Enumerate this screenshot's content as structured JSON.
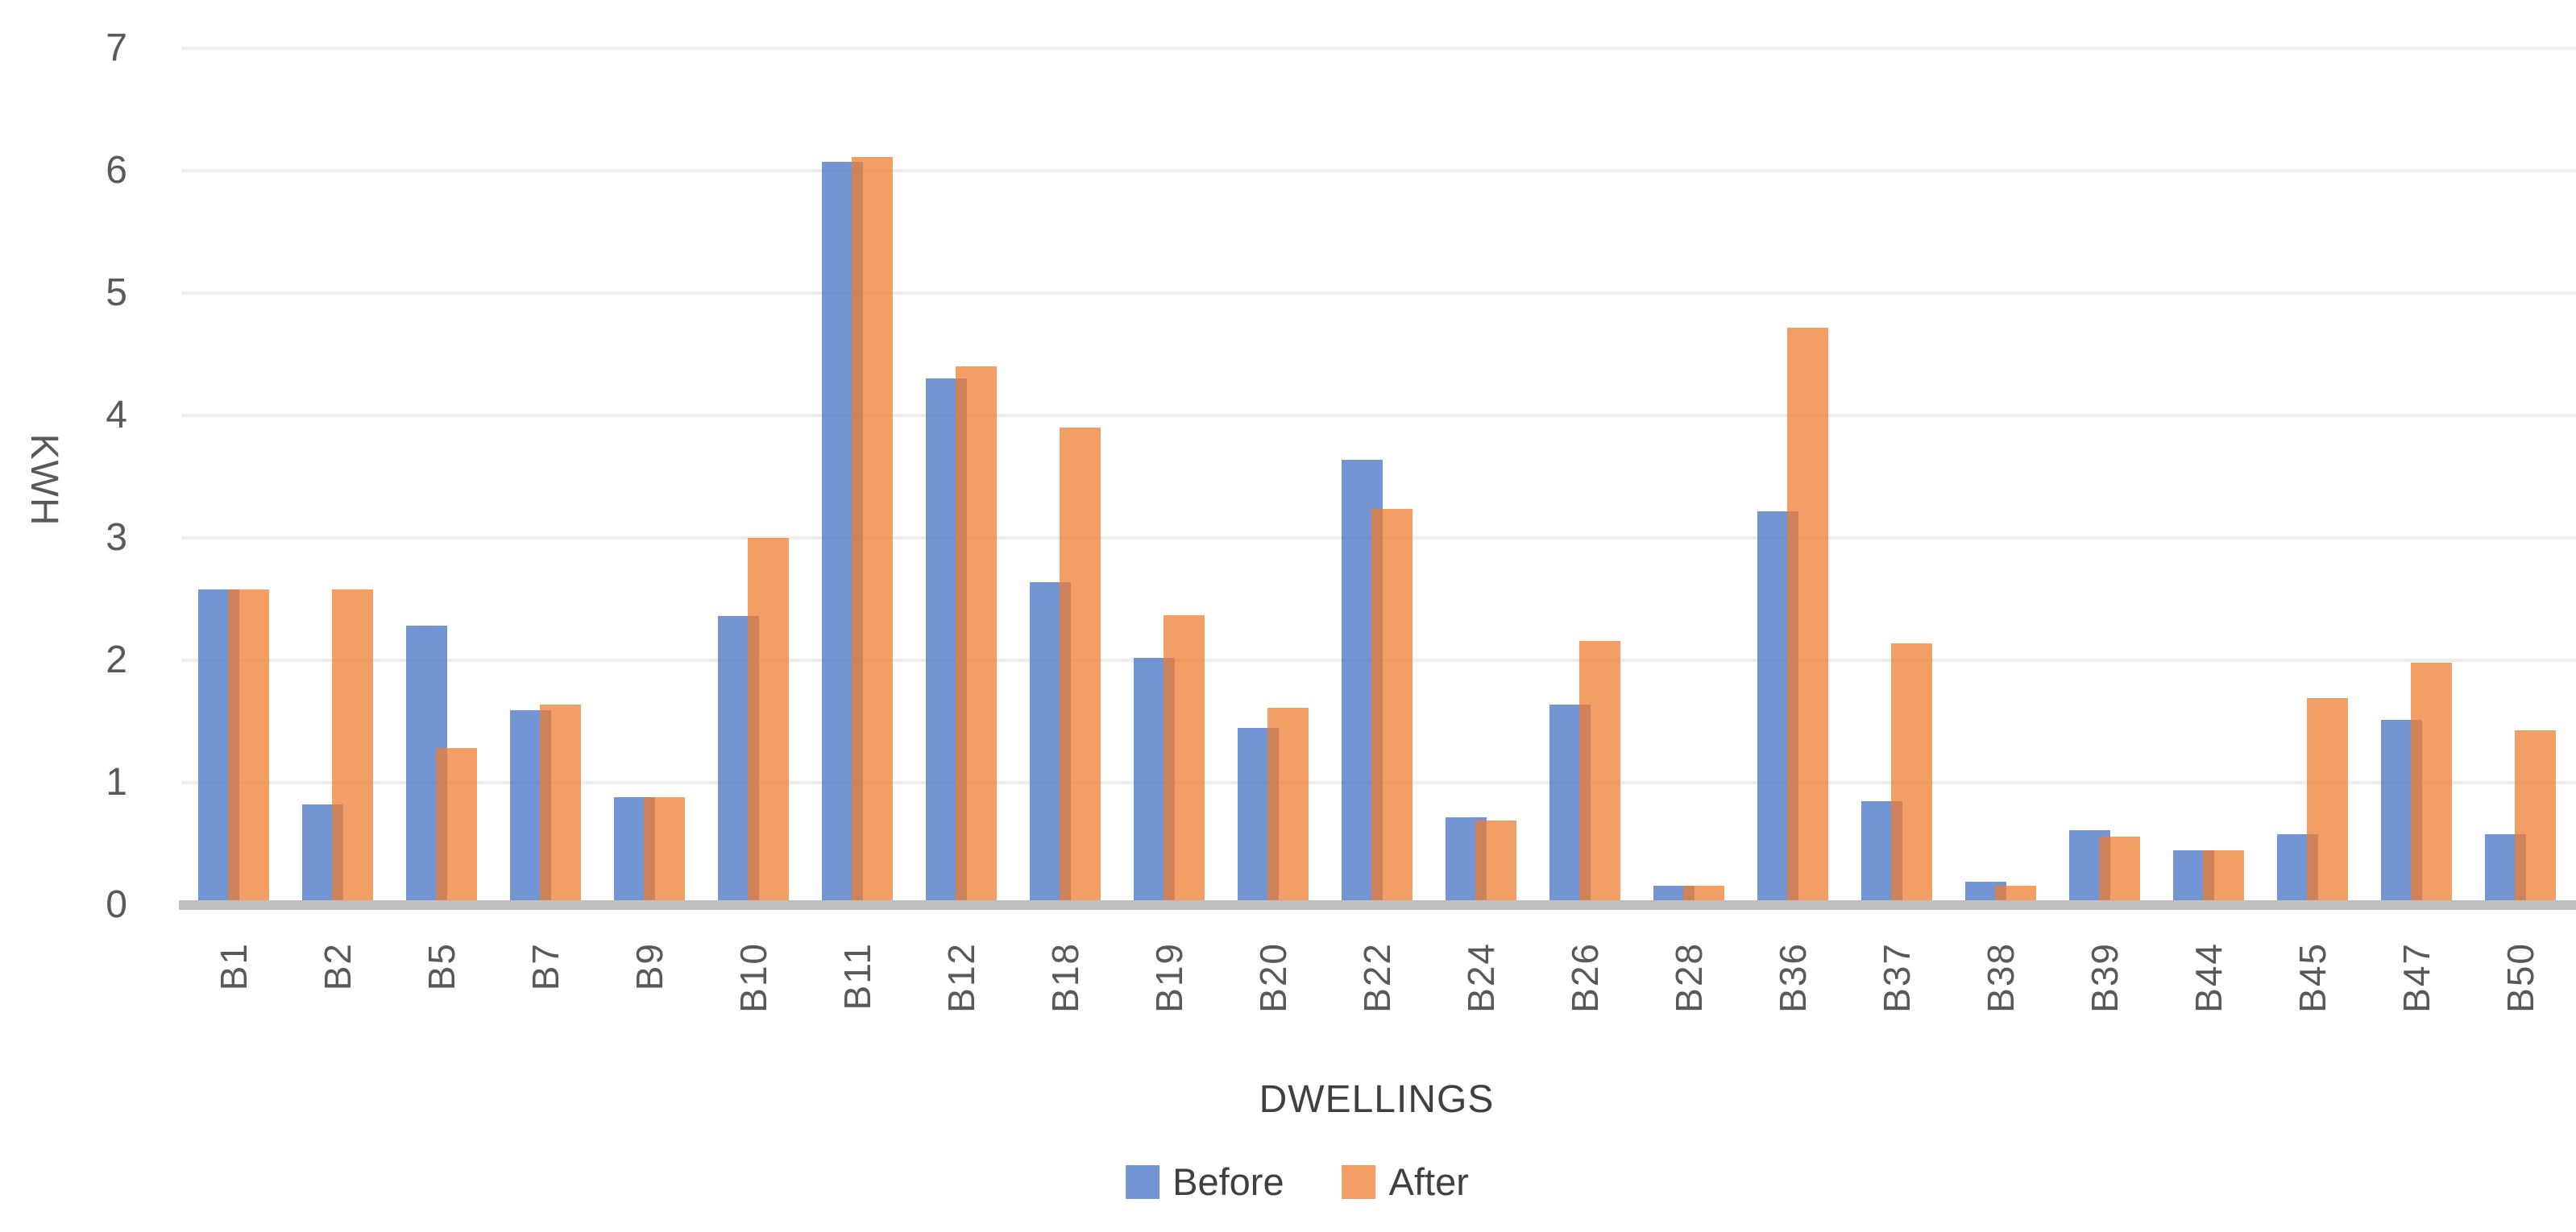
{
  "chart_data": {
    "type": "bar",
    "title": "",
    "xlabel": "DWELLINGS",
    "ylabel": "KWH",
    "ylim": [
      0,
      7
    ],
    "yticks": [
      0,
      1,
      2,
      3,
      4,
      5,
      6,
      7
    ],
    "grid": true,
    "legend_position": "bottom",
    "categories": [
      "B1",
      "B2",
      "B5",
      "B7",
      "B9",
      "B10",
      "B11",
      "B12",
      "B18",
      "B19",
      "B20",
      "B22",
      "B24",
      "B26",
      "B28",
      "B36",
      "B37",
      "B38",
      "B39",
      "B44",
      "B45",
      "B47",
      "B50"
    ],
    "series": [
      {
        "name": "Before",
        "color": "#4472C4",
        "fill": "rgba(68,114,196,0.75)",
        "values": [
          2.58,
          0.82,
          2.28,
          1.59,
          0.88,
          2.36,
          6.07,
          4.3,
          2.64,
          2.02,
          1.45,
          3.64,
          0.72,
          1.64,
          0.16,
          3.22,
          0.85,
          0.19,
          0.61,
          0.45,
          0.58,
          1.51,
          0.58
        ]
      },
      {
        "name": "After",
        "color": "#ED7D31",
        "fill": "rgba(237,125,49,0.75)",
        "values": [
          2.58,
          2.58,
          1.28,
          1.64,
          0.88,
          3.0,
          6.11,
          4.4,
          3.9,
          2.37,
          1.61,
          3.24,
          0.69,
          2.16,
          0.16,
          4.72,
          2.14,
          0.16,
          0.56,
          0.45,
          1.69,
          1.98,
          1.43
        ]
      }
    ]
  },
  "colors": {
    "gridline": "#EDEDED",
    "axis_line": "#BFBFBF",
    "tick_text": "#595959",
    "title_text": "#404040"
  }
}
